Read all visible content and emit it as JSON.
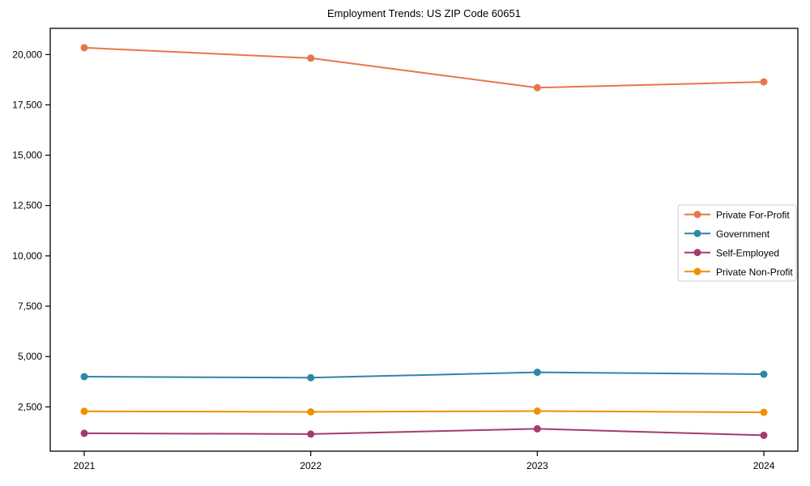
{
  "figure": {
    "title": "Employment Trends: US ZIP Code 60651"
  },
  "chart_data": {
    "type": "line",
    "title": "Employment Trends: US ZIP Code 60651",
    "xlabel": "",
    "ylabel": "",
    "grid": false,
    "legend_position": "center right",
    "x": [
      2021,
      2022,
      2023,
      2024
    ],
    "x_tick_labels": [
      "2021",
      "2022",
      "2023",
      "2024"
    ],
    "xlim": [
      2020.85,
      2024.15
    ],
    "ylim": [
      300,
      21300
    ],
    "y_ticks": [
      {
        "value": 2500,
        "label": "2,500"
      },
      {
        "value": 5000,
        "label": "5,000"
      },
      {
        "value": 7500,
        "label": "7,500"
      },
      {
        "value": 10000,
        "label": "10,000"
      },
      {
        "value": 12500,
        "label": "12,500"
      },
      {
        "value": 15000,
        "label": "15,000"
      },
      {
        "value": 17500,
        "label": "17,500"
      },
      {
        "value": 20000,
        "label": "20,000"
      }
    ],
    "series": [
      {
        "name": "Private For-Profit",
        "color": "#E8764B",
        "values": [
          20340,
          19820,
          18350,
          18640
        ]
      },
      {
        "name": "Government",
        "color": "#2E86AB",
        "values": [
          4000,
          3950,
          4220,
          4120
        ]
      },
      {
        "name": "Self-Employed",
        "color": "#A23B72",
        "values": [
          1190,
          1150,
          1410,
          1090
        ]
      },
      {
        "name": "Private Non-Profit",
        "color": "#F18F01",
        "values": [
          2280,
          2250,
          2290,
          2230
        ]
      }
    ],
    "axis_color": "#000000",
    "legend_border_color": "#cccccc",
    "marker": "circle"
  }
}
